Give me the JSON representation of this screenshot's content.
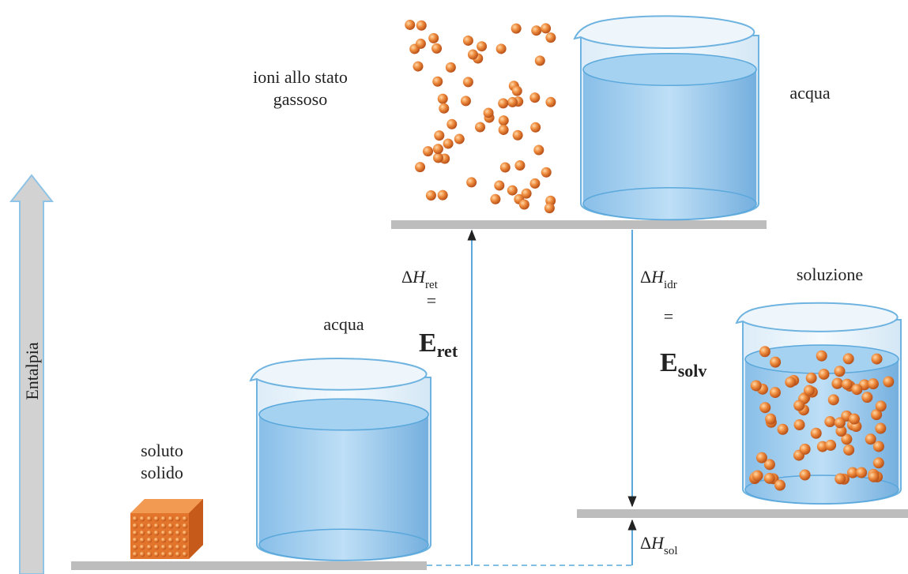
{
  "axis_label": "Entalpia",
  "labels": {
    "gas_ions": [
      "ioni allo stato",
      "gassoso"
    ],
    "water_top": "acqua",
    "water_bottom": "acqua",
    "solution": "soluzione",
    "solid_solute": [
      "soluto",
      "solido"
    ]
  },
  "lattice": {
    "delta": "Δ",
    "symbol": "H",
    "sub": "ret",
    "equals": "=",
    "energy": "E",
    "energy_sub": "ret"
  },
  "hydration": {
    "delta": "Δ",
    "symbol": "H",
    "sub": "idr",
    "equals": "=",
    "energy": "E",
    "energy_sub": "solv"
  },
  "solution_enthalpy": {
    "delta": "Δ",
    "symbol": "H",
    "sub": "sol"
  }
}
